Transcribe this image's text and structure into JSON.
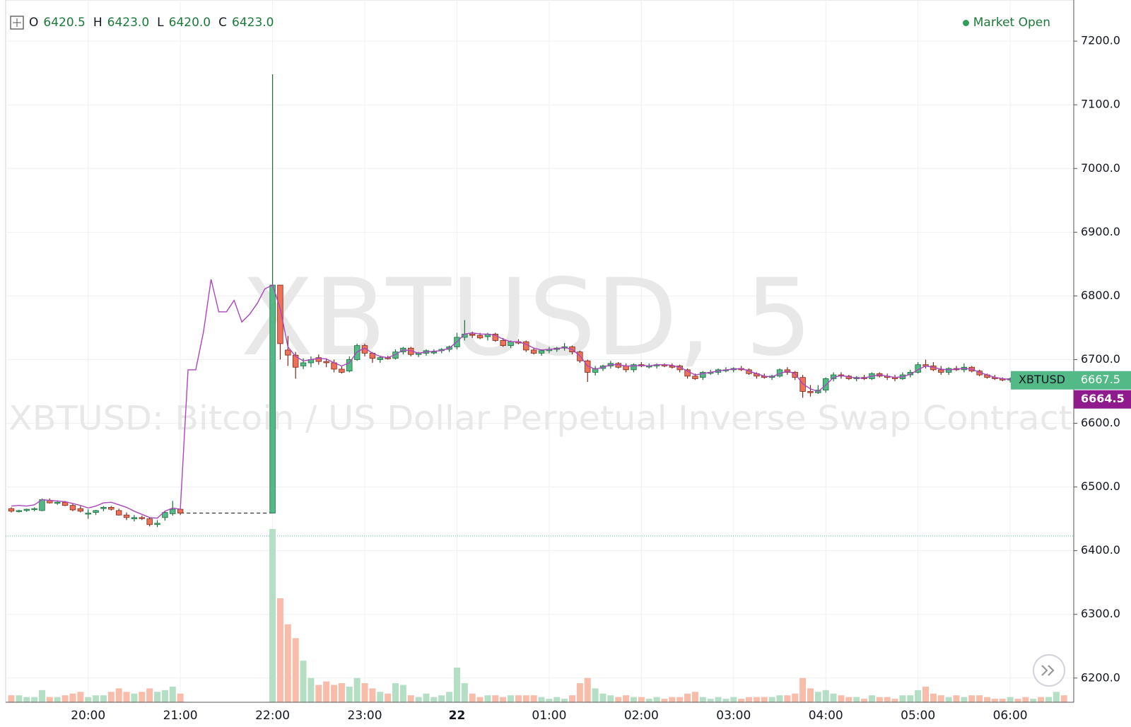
{
  "chart_data": {
    "type": "candlestick",
    "watermark": "XBTUSD, 5",
    "subtitle": "XBTUSD: Bitcoin / US Dollar Perpetual Inverse Swap Contract",
    "status": "Market Open",
    "legend_ohlc": [
      {
        "key": "O",
        "value": 6420.5,
        "label": "6420.5"
      },
      {
        "key": "H",
        "value": 6423.0,
        "label": "6423.0"
      },
      {
        "key": "L",
        "value": 6420.0,
        "label": "6420.0"
      },
      {
        "key": "C",
        "value": 6423.0,
        "label": "6423.0"
      }
    ],
    "last_price": {
      "name": "XBTUSD",
      "value": 6667.5,
      "label": "6667.5"
    },
    "ma_last": {
      "value": 6664.5,
      "label": "6664.5"
    },
    "ylim": [
      6162,
      7259
    ],
    "yticks": [
      {
        "value": 6200,
        "label": "6200.0"
      },
      {
        "value": 6300,
        "label": "6300.0"
      },
      {
        "value": 6400,
        "label": "6400.0"
      },
      {
        "value": 6500,
        "label": "6500.0"
      },
      {
        "value": 6600,
        "label": "6600.0"
      },
      {
        "value": 6700,
        "label": "6700.0"
      },
      {
        "value": 6800,
        "label": "6800.0"
      },
      {
        "value": 6900,
        "label": "6900.0"
      },
      {
        "value": 7000,
        "label": "7000.0"
      },
      {
        "value": 7100,
        "label": "7100.0"
      },
      {
        "value": 7200,
        "label": "7200.0"
      }
    ],
    "volume_lim": [
      0,
      100
    ],
    "grid": true,
    "up_color": "#53b987",
    "down_color": "#f0715a",
    "up_volume_color": "#b5dfc4",
    "down_volume_color": "#f7bcaa",
    "ma_color": "#ab47bc",
    "candle_fields": [
      "open",
      "high",
      "low",
      "close",
      "volume",
      "ma"
    ],
    "categories": [
      null,
      null,
      null,
      null,
      null,
      null,
      null,
      null,
      null,
      null,
      "20:00",
      null,
      null,
      null,
      null,
      null,
      null,
      null,
      null,
      null,
      null,
      null,
      "21:00",
      null,
      null,
      null,
      null,
      null,
      null,
      null,
      null,
      null,
      null,
      null,
      "22:00",
      null,
      null,
      null,
      null,
      null,
      null,
      null,
      null,
      null,
      null,
      null,
      "23:00",
      null,
      null,
      null,
      null,
      null,
      null,
      null,
      null,
      null,
      null,
      null,
      "22",
      null,
      null,
      null,
      null,
      null,
      null,
      null,
      null,
      null,
      null,
      null,
      "01:00",
      null,
      null,
      null,
      null,
      null,
      null,
      null,
      null,
      null,
      null,
      null,
      "02:00",
      null,
      null,
      null,
      null,
      null,
      null,
      null,
      null,
      null,
      null,
      null,
      "03:00",
      null,
      null,
      null,
      null,
      null,
      null,
      null,
      null,
      null,
      null,
      null,
      "04:00",
      null,
      null,
      null,
      null,
      null,
      null,
      null,
      null,
      null,
      null,
      null,
      "05:00",
      null,
      null,
      null,
      null,
      null,
      null,
      null,
      null,
      null,
      null,
      null,
      "06:00",
      null,
      null,
      null,
      null,
      null,
      null,
      null
    ],
    "candles": [
      [
        6466,
        6468,
        6460,
        6462,
        4,
        6470
      ],
      [
        6462,
        6464,
        6460,
        6463,
        4,
        6471
      ],
      [
        6463,
        6466,
        6461,
        6465,
        3,
        6470
      ],
      [
        6465,
        6468,
        6462,
        6466,
        3,
        6472
      ],
      [
        6463,
        6482,
        6462,
        6480,
        7,
        6480
      ],
      [
        6479,
        6482,
        6474,
        6475,
        3,
        6479
      ],
      [
        6475,
        6479,
        6472,
        6476,
        3,
        6478
      ],
      [
        6476,
        6478,
        6470,
        6471,
        4,
        6477
      ],
      [
        6471,
        6474,
        6462,
        6464,
        5,
        6474
      ],
      [
        6466,
        6470,
        6460,
        6462,
        6,
        6471
      ],
      [
        6458,
        6465,
        6450,
        6459,
        3,
        6467
      ],
      [
        6460,
        6464,
        6456,
        6463,
        4,
        6470
      ],
      [
        6466,
        6470,
        6462,
        6468,
        4,
        6475
      ],
      [
        6468,
        6470,
        6463,
        6465,
        6,
        6476
      ],
      [
        6463,
        6466,
        6455,
        6456,
        8,
        6472
      ],
      [
        6456,
        6460,
        6448,
        6452,
        6,
        6468
      ],
      [
        6450,
        6456,
        6446,
        6452,
        5,
        6462
      ],
      [
        6452,
        6455,
        6448,
        6451,
        6,
        6457
      ],
      [
        6450,
        6452,
        6438,
        6441,
        8,
        6452
      ],
      [
        6441,
        6448,
        6437,
        6443,
        6,
        6451
      ],
      [
        6452,
        6462,
        6447,
        6460,
        7,
        6462
      ],
      [
        6458,
        6478,
        6455,
        6465,
        9,
        6467
      ],
      [
        6465,
        6466,
        6456,
        6459,
        5,
        6465
      ],
      [
        null,
        null,
        null,
        null,
        null,
        6684
      ],
      [
        null,
        null,
        null,
        null,
        null,
        6684
      ],
      [
        null,
        null,
        null,
        null,
        null,
        6743
      ],
      [
        null,
        null,
        null,
        null,
        null,
        6826
      ],
      [
        null,
        null,
        null,
        null,
        null,
        6775
      ],
      [
        null,
        null,
        null,
        null,
        null,
        6775
      ],
      [
        null,
        null,
        null,
        null,
        null,
        6793
      ],
      [
        null,
        null,
        null,
        null,
        null,
        6759
      ],
      [
        null,
        null,
        null,
        null,
        null,
        6771
      ],
      [
        null,
        null,
        null,
        null,
        null,
        6788
      ],
      [
        null,
        null,
        null,
        null,
        null,
        6811
      ],
      [
        6459,
        7148,
        6459,
        6817,
        100,
        6817
      ],
      [
        6817,
        6817,
        6700,
        6725,
        60,
        6780
      ],
      [
        6715,
        6737,
        6690,
        6707,
        45,
        6720
      ],
      [
        6707,
        6712,
        6670,
        6688,
        37,
        6705
      ],
      [
        6690,
        6702,
        6685,
        6695,
        24,
        6698
      ],
      [
        6695,
        6705,
        6688,
        6700,
        14,
        6700
      ],
      [
        6703,
        6708,
        6692,
        6697,
        10,
        6702
      ],
      [
        6697,
        6702,
        6688,
        6695,
        12,
        6701
      ],
      [
        6695,
        6700,
        6680,
        6685,
        10,
        6695
      ],
      [
        6685,
        6690,
        6678,
        6680,
        11,
        6690
      ],
      [
        6682,
        6705,
        6680,
        6700,
        9,
        6695
      ],
      [
        6700,
        6725,
        6698,
        6722,
        14,
        6712
      ],
      [
        6722,
        6725,
        6705,
        6710,
        11,
        6718
      ],
      [
        6710,
        6712,
        6695,
        6702,
        8,
        6710
      ],
      [
        6700,
        6706,
        6695,
        6703,
        6,
        6705
      ],
      [
        6703,
        6706,
        6700,
        6702,
        5,
        6703
      ],
      [
        6702,
        6716,
        6700,
        6712,
        11,
        6708
      ],
      [
        6712,
        6720,
        6708,
        6718,
        10,
        6715
      ],
      [
        6718,
        6720,
        6705,
        6708,
        4,
        6714
      ],
      [
        6708,
        6712,
        6704,
        6710,
        3,
        6710
      ],
      [
        6710,
        6716,
        6706,
        6714,
        5,
        6712
      ],
      [
        6712,
        6716,
        6708,
        6712,
        3,
        6713
      ],
      [
        6714,
        6718,
        6710,
        6716,
        4,
        6714
      ],
      [
        6716,
        6722,
        6712,
        6720,
        6,
        6718
      ],
      [
        6720,
        6742,
        6716,
        6735,
        20,
        6728
      ],
      [
        6735,
        6762,
        6730,
        6740,
        11,
        6740
      ],
      [
        6740,
        6744,
        6734,
        6738,
        5,
        6742
      ],
      [
        6738,
        6742,
        6732,
        6734,
        3,
        6740
      ],
      [
        6736,
        6742,
        6730,
        6740,
        4,
        6740
      ],
      [
        6740,
        6742,
        6728,
        6730,
        4,
        6738
      ],
      [
        6730,
        6734,
        6720,
        6722,
        3,
        6732
      ],
      [
        6722,
        6730,
        6718,
        6728,
        4,
        6728
      ],
      [
        6728,
        6732,
        6724,
        6726,
        4,
        6728
      ],
      [
        6728,
        6730,
        6712,
        6715,
        4,
        6724
      ],
      [
        6715,
        6718,
        6708,
        6710,
        4,
        6718
      ],
      [
        6710,
        6716,
        6706,
        6714,
        3,
        6715
      ],
      [
        6714,
        6720,
        6710,
        6716,
        2,
        6716
      ],
      [
        6716,
        6720,
        6712,
        6718,
        3,
        6717
      ],
      [
        6718,
        6726,
        6714,
        6720,
        2,
        6719
      ],
      [
        6720,
        6722,
        6708,
        6712,
        4,
        6716
      ],
      [
        6712,
        6714,
        6695,
        6698,
        11,
        6706
      ],
      [
        6698,
        6700,
        6665,
        6680,
        14,
        6690
      ],
      [
        6680,
        6690,
        6675,
        6686,
        8,
        6685
      ],
      [
        6686,
        6692,
        6682,
        6690,
        5,
        6688
      ],
      [
        6690,
        6698,
        6686,
        6694,
        4,
        6692
      ],
      [
        6694,
        6696,
        6686,
        6688,
        3,
        6692
      ],
      [
        6690,
        6694,
        6680,
        6684,
        4,
        6690
      ],
      [
        6684,
        6694,
        6680,
        6692,
        3,
        6690
      ],
      [
        6692,
        6696,
        6688,
        6690,
        3,
        6691
      ],
      [
        6690,
        6694,
        6686,
        6690,
        2,
        6690
      ],
      [
        6690,
        6694,
        6686,
        6692,
        3,
        6692
      ],
      [
        6692,
        6694,
        6688,
        6690,
        2,
        6692
      ],
      [
        6690,
        6694,
        6686,
        6688,
        3,
        6691
      ],
      [
        6690,
        6692,
        6680,
        6684,
        3,
        6688
      ],
      [
        6684,
        6686,
        6670,
        6674,
        5,
        6682
      ],
      [
        6674,
        6678,
        6668,
        6670,
        6,
        6676
      ],
      [
        6672,
        6682,
        6668,
        6680,
        3,
        6678
      ],
      [
        6680,
        6684,
        6676,
        6680,
        2,
        6680
      ],
      [
        6680,
        6686,
        6676,
        6684,
        3,
        6682
      ],
      [
        6684,
        6688,
        6680,
        6684,
        2,
        6684
      ],
      [
        6684,
        6688,
        6680,
        6686,
        3,
        6685
      ],
      [
        6686,
        6690,
        6682,
        6684,
        2,
        6686
      ],
      [
        6684,
        6686,
        6676,
        6678,
        3,
        6682
      ],
      [
        6678,
        6680,
        6670,
        6674,
        3,
        6678
      ],
      [
        6674,
        6678,
        6670,
        6672,
        3,
        6674
      ],
      [
        6672,
        6676,
        6668,
        6674,
        3,
        6673
      ],
      [
        6674,
        6686,
        6672,
        6684,
        4,
        6678
      ],
      [
        6684,
        6688,
        6676,
        6680,
        4,
        6682
      ],
      [
        6680,
        6682,
        6668,
        6672,
        5,
        6678
      ],
      [
        6672,
        6676,
        6640,
        6650,
        14,
        6662
      ],
      [
        6650,
        6660,
        6642,
        6648,
        8,
        6654
      ],
      [
        6648,
        6660,
        6646,
        6652,
        6,
        6650
      ],
      [
        6652,
        6672,
        6648,
        6670,
        7,
        6660
      ],
      [
        6670,
        6680,
        6666,
        6676,
        5,
        6672
      ],
      [
        6676,
        6680,
        6670,
        6674,
        4,
        6675
      ],
      [
        6674,
        6676,
        6668,
        6670,
        3,
        6673
      ],
      [
        6670,
        6674,
        6666,
        6672,
        3,
        6671
      ],
      [
        6672,
        6676,
        6668,
        6670,
        2,
        6671
      ],
      [
        6670,
        6680,
        6668,
        6678,
        4,
        6674
      ],
      [
        6678,
        6680,
        6672,
        6674,
        3,
        6676
      ],
      [
        6674,
        6678,
        6668,
        6672,
        3,
        6674
      ],
      [
        6672,
        6676,
        6666,
        6670,
        2,
        6672
      ],
      [
        6670,
        6680,
        6668,
        6676,
        4,
        6673
      ],
      [
        6676,
        6684,
        6672,
        6680,
        4,
        6677
      ],
      [
        6680,
        6696,
        6678,
        6692,
        7,
        6684
      ],
      [
        6692,
        6700,
        6686,
        6690,
        9,
        6690
      ],
      [
        6690,
        6696,
        6682,
        6684,
        5,
        6688
      ],
      [
        6684,
        6690,
        6676,
        6680,
        4,
        6685
      ],
      [
        6680,
        6688,
        6676,
        6686,
        3,
        6684
      ],
      [
        6686,
        6690,
        6682,
        6684,
        4,
        6685
      ],
      [
        6684,
        6694,
        6680,
        6688,
        3,
        6686
      ],
      [
        6688,
        6690,
        6680,
        6682,
        4,
        6685
      ],
      [
        6682,
        6684,
        6674,
        6676,
        4,
        6680
      ],
      [
        6676,
        6678,
        6670,
        6672,
        3,
        6676
      ],
      [
        6672,
        6676,
        6668,
        6670,
        2,
        6672
      ],
      [
        6670,
        6672,
        6666,
        6668,
        2,
        6670
      ],
      [
        6668,
        6672,
        6664,
        6670,
        3,
        6669
      ],
      [
        6670,
        6672,
        6665,
        6668,
        2,
        6668
      ],
      [
        6668,
        6670,
        6664,
        6666,
        3,
        6667
      ],
      [
        6666,
        6670,
        6662,
        6668,
        2,
        6666
      ],
      [
        6668,
        6672,
        6664,
        6666,
        3,
        6666
      ],
      [
        6666,
        6670,
        6662,
        6668,
        3,
        6665
      ],
      [
        6668,
        6672,
        6664,
        6670,
        6,
        6665
      ],
      [
        6670,
        6674,
        6662,
        6667.5,
        4,
        6664.5
      ]
    ]
  }
}
